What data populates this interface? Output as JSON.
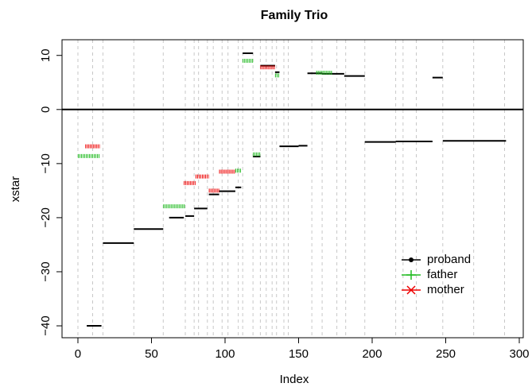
{
  "chart_data": {
    "type": "segment",
    "title": "Family Trio",
    "x_label": "Index",
    "y_label": "xstar",
    "xlim": [
      -10.8,
      302.7
    ],
    "ylim": [
      -42.2,
      12.9
    ],
    "xticks": [
      0,
      50,
      100,
      150,
      200,
      250,
      300
    ],
    "yticks": [
      {
        "value": -40,
        "label": "−40"
      },
      {
        "value": -30,
        "label": "−30"
      },
      {
        "value": -20,
        "label": "−20"
      },
      {
        "value": -10,
        "label": "−10"
      },
      0,
      10
    ],
    "hline": 0,
    "breaks": [
      0,
      10,
      17,
      38,
      58,
      73,
      79,
      82,
      88,
      92,
      98,
      102,
      109,
      112,
      119,
      124,
      128,
      132,
      135,
      140,
      143,
      159,
      166,
      176,
      182,
      195,
      216,
      221,
      230,
      248,
      269,
      290
    ],
    "legend_position": "bottomright",
    "series": [
      {
        "name": "proband",
        "color": "#000000",
        "marker": "dot",
        "segments": [
          {
            "x0": 6,
            "x1": 16,
            "y": -40
          },
          {
            "x0": 17,
            "x1": 38,
            "y": -24.7
          },
          {
            "x0": 38,
            "x1": 58,
            "y": -22.1
          },
          {
            "x0": 62,
            "x1": 72,
            "y": -20
          },
          {
            "x0": 73,
            "x1": 79,
            "y": -19.7
          },
          {
            "x0": 79,
            "x1": 88,
            "y": -18.3
          },
          {
            "x0": 89,
            "x1": 96,
            "y": -15.7
          },
          {
            "x0": 96,
            "x1": 107,
            "y": -15.1
          },
          {
            "x0": 107,
            "x1": 111,
            "y": -14.4
          },
          {
            "x0": 112,
            "x1": 119,
            "y": 10.4
          },
          {
            "x0": 119,
            "x1": 124,
            "y": -8.7
          },
          {
            "x0": 124,
            "x1": 134,
            "y": 8.1
          },
          {
            "x0": 134,
            "x1": 137,
            "y": 6.9
          },
          {
            "x0": 137,
            "x1": 150,
            "y": -6.8
          },
          {
            "x0": 150,
            "x1": 156,
            "y": -6.7
          },
          {
            "x0": 156,
            "x1": 166,
            "y": 6.7
          },
          {
            "x0": 166,
            "x1": 181,
            "y": 6.6
          },
          {
            "x0": 181,
            "x1": 195,
            "y": 6.2
          },
          {
            "x0": 195,
            "x1": 216,
            "y": -6
          },
          {
            "x0": 216,
            "x1": 241,
            "y": -5.9
          },
          {
            "x0": 241,
            "x1": 248,
            "y": 5.9
          },
          {
            "x0": 248,
            "x1": 291,
            "y": -5.8
          }
        ]
      },
      {
        "name": "father",
        "color": "#22bb22",
        "marker": "plus",
        "segments": [
          {
            "x0": 0,
            "x1": 15,
            "y": -8.6
          },
          {
            "x0": 58,
            "x1": 73,
            "y": -17.9
          },
          {
            "x0": 107,
            "x1": 111,
            "y": -11.3
          },
          {
            "x0": 112,
            "x1": 119,
            "y": 9
          },
          {
            "x0": 119,
            "x1": 124,
            "y": -8.3
          },
          {
            "x0": 134,
            "x1": 137,
            "y": 6.3
          },
          {
            "x0": 162,
            "x1": 173,
            "y": 6.8
          }
        ]
      },
      {
        "name": "mother",
        "color": "#ee0000",
        "marker": "cross",
        "segments": [
          {
            "x0": 5,
            "x1": 15,
            "y": -6.8
          },
          {
            "x0": 72,
            "x1": 80,
            "y": -13.6
          },
          {
            "x0": 80,
            "x1": 89,
            "y": -12.4
          },
          {
            "x0": 89,
            "x1": 96,
            "y": -15
          },
          {
            "x0": 96,
            "x1": 107,
            "y": -11.5
          },
          {
            "x0": 124,
            "x1": 134,
            "y": 7.8
          }
        ]
      }
    ]
  }
}
